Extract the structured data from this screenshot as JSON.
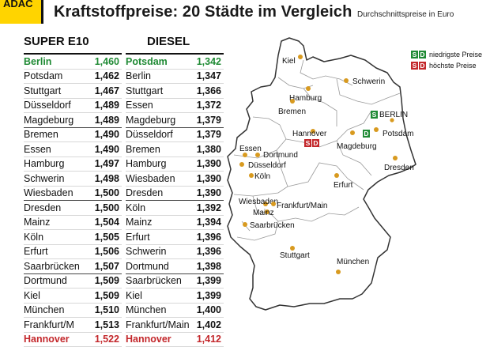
{
  "brand": "ADAC",
  "title": "Kraftstoffpreise: 20 Städte im Vergleich",
  "subtitle": "Durchschnittspreise in Euro",
  "colors": {
    "low": "#1f8a34",
    "high": "#c3272b",
    "dot": "#d89a1f",
    "brand": "#ffd400"
  },
  "chart_data": [
    {
      "type": "table",
      "title": "SUPER E10",
      "rows": [
        {
          "city": "Berlin",
          "price": "1,460",
          "mark": "low"
        },
        {
          "city": "Potsdam",
          "price": "1,462"
        },
        {
          "city": "Stuttgart",
          "price": "1,467"
        },
        {
          "city": "Düsseldorf",
          "price": "1,489"
        },
        {
          "city": "Magdeburg",
          "price": "1,489"
        },
        {
          "city": "Bremen",
          "price": "1,490"
        },
        {
          "city": "Essen",
          "price": "1,490"
        },
        {
          "city": "Hamburg",
          "price": "1,497"
        },
        {
          "city": "Schwerin",
          "price": "1,498"
        },
        {
          "city": "Wiesbaden",
          "price": "1,500"
        },
        {
          "city": "Dresden",
          "price": "1,500"
        },
        {
          "city": "Mainz",
          "price": "1,504"
        },
        {
          "city": "Köln",
          "price": "1,505"
        },
        {
          "city": "Erfurt",
          "price": "1,506"
        },
        {
          "city": "Saarbrücken",
          "price": "1,507"
        },
        {
          "city": "Dortmund",
          "price": "1,509"
        },
        {
          "city": "Kiel",
          "price": "1,509"
        },
        {
          "city": "München",
          "price": "1,510"
        },
        {
          "city": "Frankfurt/M",
          "price": "1,513"
        },
        {
          "city": "Hannover",
          "price": "1,522",
          "mark": "high"
        }
      ]
    },
    {
      "type": "table",
      "title": "DIESEL",
      "rows": [
        {
          "city": "Potsdam",
          "price": "1,342",
          "mark": "low"
        },
        {
          "city": "Berlin",
          "price": "1,347"
        },
        {
          "city": "Stuttgart",
          "price": "1,366"
        },
        {
          "city": "Essen",
          "price": "1,372"
        },
        {
          "city": "Magdeburg",
          "price": "1,379"
        },
        {
          "city": "Düsseldorf",
          "price": "1,379"
        },
        {
          "city": "Bremen",
          "price": "1,380"
        },
        {
          "city": "Hamburg",
          "price": "1,390"
        },
        {
          "city": "Wiesbaden",
          "price": "1,390"
        },
        {
          "city": "Dresden",
          "price": "1,390"
        },
        {
          "city": "Köln",
          "price": "1,392"
        },
        {
          "city": "Mainz",
          "price": "1,394"
        },
        {
          "city": "Erfurt",
          "price": "1,396"
        },
        {
          "city": "Schwerin",
          "price": "1,396"
        },
        {
          "city": "Dortmund",
          "price": "1,398"
        },
        {
          "city": "Saarbrücken",
          "price": "1,399"
        },
        {
          "city": "Kiel",
          "price": "1,399"
        },
        {
          "city": "München",
          "price": "1,400"
        },
        {
          "city": "Frankfurt/Main",
          "price": "1,402"
        },
        {
          "city": "Hannover",
          "price": "1,412",
          "mark": "high"
        }
      ]
    }
  ],
  "legend": {
    "low": {
      "badge_s": "S",
      "badge_d": "D",
      "label": "niedrigste Preise"
    },
    "high": {
      "badge_s": "S",
      "badge_d": "D",
      "label": "höchste Preise"
    }
  },
  "map": {
    "cities": [
      "Kiel",
      "Schwerin",
      "Hamburg",
      "Bremen",
      "BERLIN",
      "Potsdam",
      "Hannover",
      "Magdeburg",
      "Essen",
      "Dortmund",
      "Düsseldorf",
      "Köln",
      "Erfurt",
      "Dresden",
      "Wiesbaden",
      "Frankfurt/Main",
      "Mainz",
      "Saarbrücken",
      "Stuttgart",
      "München"
    ],
    "badges": {
      "berlin_s": "S",
      "potsdam_d": "D",
      "hannover_s": "S",
      "hannover_d": "D"
    }
  }
}
